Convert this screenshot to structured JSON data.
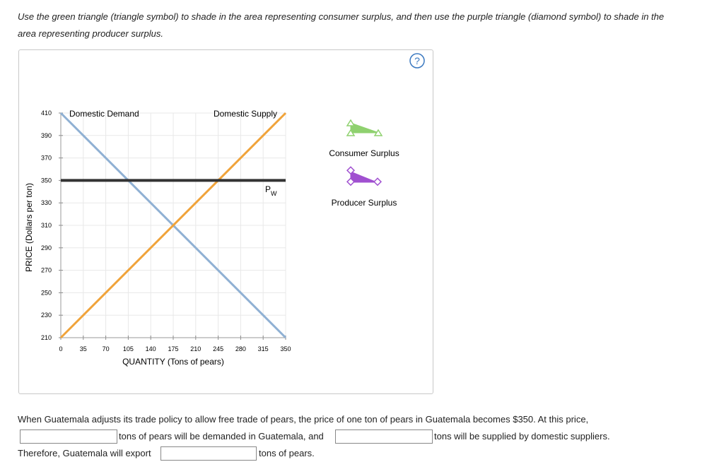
{
  "instructions": "Use the green triangle (triangle symbol) to shade in the area representing consumer surplus, and then use the purple triangle (diamond symbol) to shade in the area representing producer surplus.",
  "help": "?",
  "chart_data": {
    "type": "line",
    "x_label": "QUANTITY (Tons of pears)",
    "y_label": "PRICE (Dollars per ton)",
    "xlim": [
      0,
      350
    ],
    "xticks": [
      0,
      35,
      70,
      105,
      140,
      175,
      210,
      245,
      280,
      315,
      350
    ],
    "ylim": [
      210,
      410
    ],
    "yticks": [
      210,
      230,
      250,
      270,
      290,
      310,
      330,
      350,
      370,
      390,
      410
    ],
    "grid": true,
    "series": [
      {
        "name": "Domestic Demand",
        "color": "#8fb0d3",
        "x": [
          0,
          350
        ],
        "values": [
          410,
          210
        ]
      },
      {
        "name": "Domestic Supply",
        "color": "#f0a33a",
        "x": [
          0,
          350
        ],
        "values": [
          210,
          410
        ]
      },
      {
        "name": "P",
        "subscript": "W",
        "color": "#333333",
        "x": [
          0,
          350
        ],
        "values": [
          350,
          350
        ]
      }
    ]
  },
  "tools": [
    {
      "label": "Consumer Surplus",
      "color": "#8fd16f"
    },
    {
      "label": "Producer Surplus",
      "color": "#a050d0"
    }
  ],
  "question": {
    "sentence": "When Guatemala adjusts its trade policy to allow free trade of pears, the price of one ton of pears in Guatemala becomes $350. At this price,",
    "after_demand": "tons of pears will be demanded in Guatemala, and",
    "after_supply": "tons will be supplied by domestic suppliers.",
    "therefore": "Therefore, Guatemala will export",
    "after_export": "tons of pears."
  }
}
